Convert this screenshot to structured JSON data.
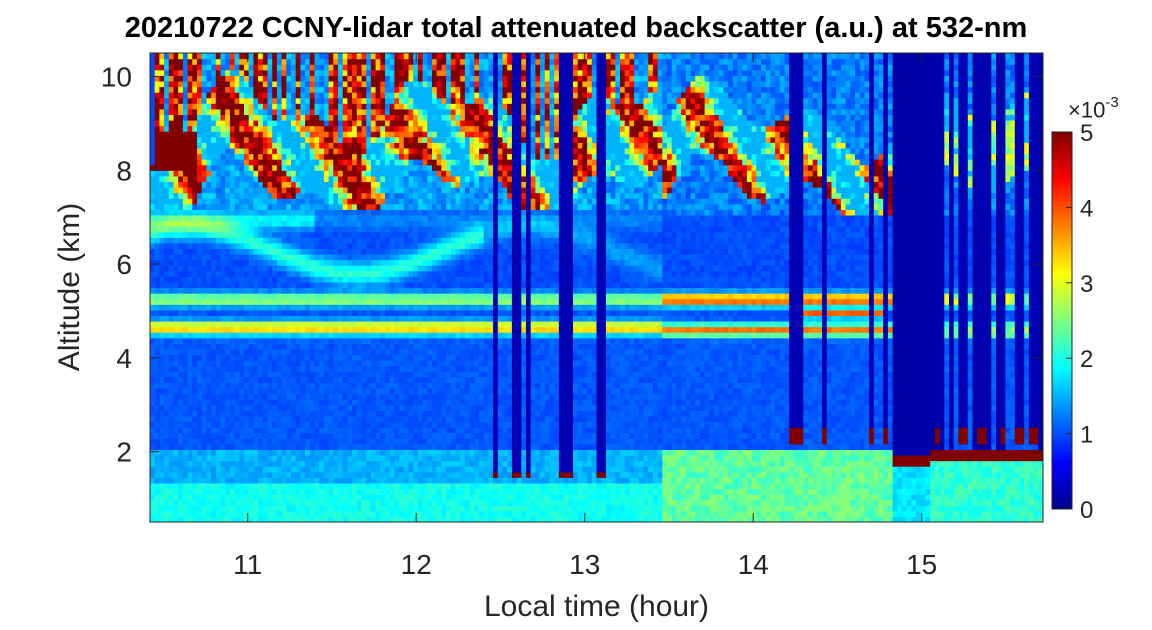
{
  "chart_data": {
    "type": "heatmap",
    "title": "20210722 CCNY-lidar total attenuated backscatter (a.u.) at 532-nm",
    "xlabel": "Local time (hour)",
    "ylabel": "Altitude (km)",
    "xlim": [
      10.42,
      15.72
    ],
    "ylim": [
      0.5,
      10.5
    ],
    "xticks": [
      11,
      12,
      13,
      14,
      15
    ],
    "yticks": [
      2,
      4,
      6,
      8,
      10
    ],
    "colorbar": {
      "colormap": "jet",
      "clim": [
        0,
        5
      ],
      "ticks": [
        0,
        1,
        2,
        3,
        4,
        5
      ],
      "exponent_label": "×10",
      "exponent_power": "-3"
    },
    "features": [
      {
        "feature": "cirrus cloud",
        "time_range": [
          10.42,
          14.8
        ],
        "altitude_range": [
          6.8,
          10.5
        ],
        "value": ">5"
      },
      {
        "feature": "aerosol layer",
        "time_range": [
          10.42,
          14.8
        ],
        "altitude_range": [
          4.4,
          5.4
        ],
        "value": "2.5-4"
      },
      {
        "feature": "boundary layer aerosol",
        "time_range": [
          10.42,
          15.72
        ],
        "altitude_range": [
          0.5,
          2.0
        ],
        "value": "1.5-2.5"
      },
      {
        "feature": "low cloud",
        "time_range": [
          14.8,
          15.72
        ],
        "altitude_range": [
          1.6,
          2.0
        ],
        "value": ">5"
      }
    ]
  }
}
